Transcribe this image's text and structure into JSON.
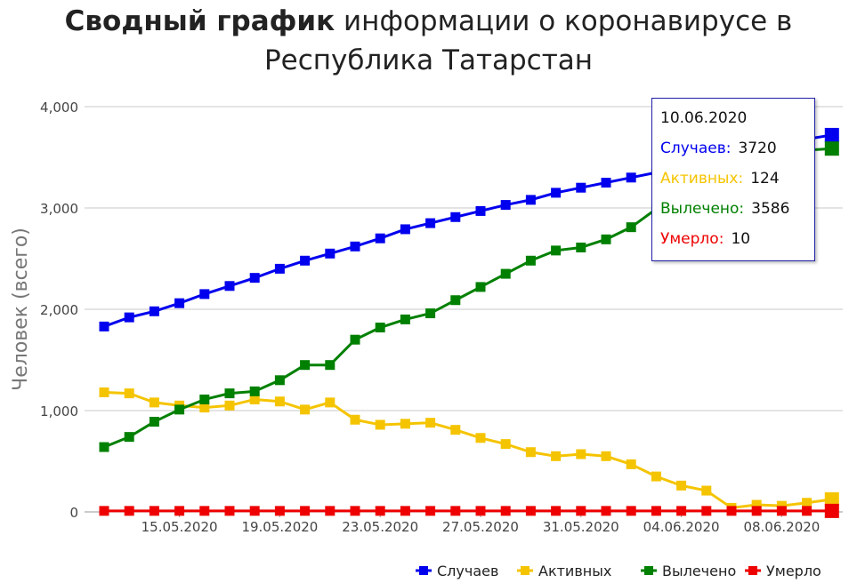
{
  "title": {
    "bold": "Сводный график",
    "line1_rest": " информации о коронавирусе в",
    "line2": "Республика Татарстан"
  },
  "chart_data": {
    "type": "line",
    "title": "Сводный график информации о коронавирусе в Республика Татарстан",
    "ylabel": "Человек (всего)",
    "xlabel": "",
    "ylim": [
      0,
      4000
    ],
    "yticks": [
      "0",
      "1,000",
      "2,000",
      "3,000",
      "4,000"
    ],
    "ytick_values": [
      0,
      1000,
      2000,
      3000,
      4000
    ],
    "grid": true,
    "legend_position": "bottom-right",
    "x": [
      "12.05.2020",
      "13.05.2020",
      "14.05.2020",
      "15.05.2020",
      "16.05.2020",
      "17.05.2020",
      "18.05.2020",
      "19.05.2020",
      "20.05.2020",
      "21.05.2020",
      "22.05.2020",
      "23.05.2020",
      "24.05.2020",
      "25.05.2020",
      "26.05.2020",
      "27.05.2020",
      "28.05.2020",
      "29.05.2020",
      "30.05.2020",
      "31.05.2020",
      "01.06.2020",
      "02.06.2020",
      "03.06.2020",
      "04.06.2020",
      "05.06.2020",
      "06.06.2020",
      "07.06.2020",
      "08.06.2020",
      "09.06.2020",
      "10.06.2020"
    ],
    "xtick_labels": [
      "15.05.2020",
      "19.05.2020",
      "23.05.2020",
      "27.05.2020",
      "31.05.2020",
      "04.06.2020",
      "08.06.2020"
    ],
    "series": [
      {
        "name": "Случаев",
        "color": "#0000ee",
        "values": [
          1830,
          1920,
          1980,
          2060,
          2150,
          2230,
          2310,
          2400,
          2480,
          2550,
          2620,
          2700,
          2790,
          2850,
          2910,
          2970,
          3030,
          3080,
          3150,
          3200,
          3250,
          3300,
          3350,
          3410,
          3470,
          3530,
          3590,
          3640,
          3680,
          3720
        ]
      },
      {
        "name": "Активных",
        "color": "#f5c400",
        "values": [
          1180,
          1170,
          1080,
          1050,
          1030,
          1050,
          1110,
          1090,
          1010,
          1080,
          910,
          860,
          870,
          880,
          810,
          730,
          670,
          590,
          550,
          570,
          550,
          470,
          350,
          260,
          210,
          40,
          70,
          60,
          90,
          124
        ]
      },
      {
        "name": "Вылечено",
        "color": "#008000",
        "values": [
          640,
          740,
          890,
          1010,
          1110,
          1170,
          1190,
          1300,
          1450,
          1450,
          1700,
          1820,
          1900,
          1960,
          2090,
          2220,
          2350,
          2480,
          2580,
          2610,
          2690,
          2810,
          2990,
          3140,
          3250,
          3380,
          3470,
          3530,
          3570,
          3586
        ]
      },
      {
        "name": "Умерло",
        "color": "#ee0000",
        "values": [
          10,
          10,
          10,
          10,
          10,
          10,
          10,
          10,
          10,
          10,
          10,
          10,
          10,
          10,
          10,
          10,
          10,
          10,
          10,
          10,
          10,
          10,
          10,
          10,
          10,
          10,
          10,
          10,
          10,
          10
        ]
      }
    ]
  },
  "tooltip": {
    "date": "10.06.2020",
    "cases_label": "Случаев:",
    "cases_value": "3720",
    "active_label": "Активных:",
    "active_value": "124",
    "recovered_label": "Вылечено:",
    "recovered_value": "3586",
    "deaths_label": "Умерло:",
    "deaths_value": "10"
  },
  "colors": {
    "cases": "#0000ee",
    "active": "#f5c400",
    "recovered": "#008000",
    "deaths": "#ee0000",
    "grid": "#c8c8c8",
    "axis_text": "#444444"
  }
}
